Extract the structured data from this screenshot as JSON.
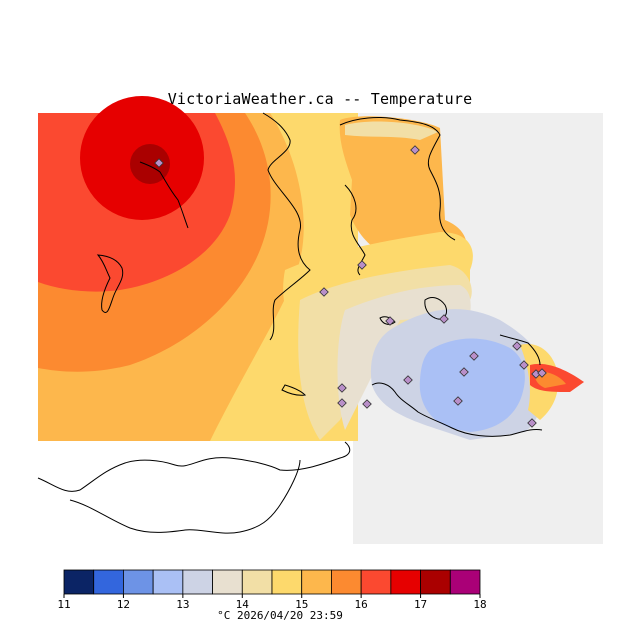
{
  "title": "VictoriaWeather.ca -- Temperature",
  "colorbar": {
    "ticks": [
      "11",
      "12",
      "13",
      "14",
      "15",
      "16",
      "17",
      "18"
    ],
    "colors": [
      "#0b2465",
      "#3366dd",
      "#6d93e6",
      "#aac0f5",
      "#cdd3e5",
      "#e8e0d0",
      "#f2dfa6",
      "#fdd96c",
      "#fdb74c",
      "#fc8a30",
      "#fb4930",
      "#e60000",
      "#aa0000",
      "#aa0077"
    ]
  },
  "footer": "°C  2026/04/20 23:59",
  "map": {
    "land_color": "#efefef",
    "no_data_color": "#ffffff",
    "station_color": "#b98fc9"
  }
}
